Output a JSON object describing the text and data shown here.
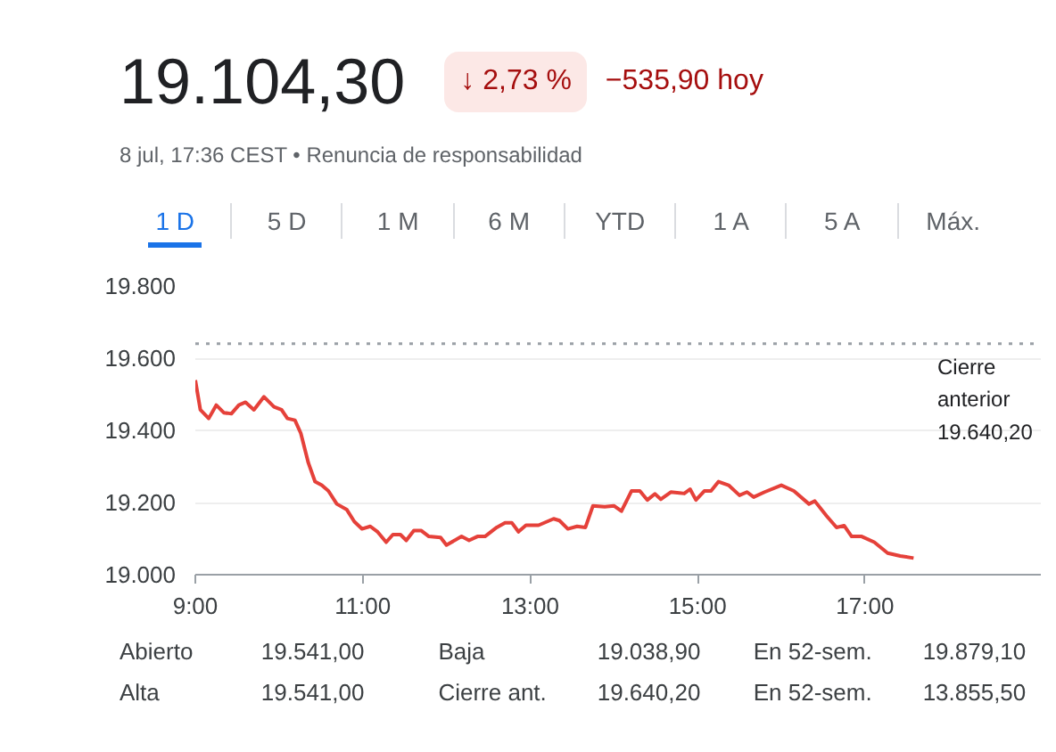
{
  "chart_data": {
    "type": "line",
    "title": "19.104,30",
    "annotations": [
      "↓ 2,73 %",
      "−535,90 hoy",
      "8 jul, 17:36 CEST • Renuncia de responsabilidad",
      "1 D",
      "5 D",
      "1 M",
      "6 M",
      "YTD",
      "1 A",
      "5 A",
      "Máx.",
      "Abierto",
      "19.541,00",
      "Baja",
      "19.038,90",
      "En 52-sem.",
      "19.879,10",
      "Alta",
      "19.541,00",
      "Cierre ant.",
      "19.640,20",
      "En 52-sem.",
      "13.855,50"
    ],
    "x": [
      9.0,
      9.06,
      9.16,
      9.25,
      9.34,
      9.43,
      9.52,
      9.6,
      9.7,
      9.82,
      9.94,
      10.03,
      10.1,
      10.19,
      10.26,
      10.35,
      10.43,
      10.51,
      10.59,
      10.69,
      10.81,
      10.9,
      10.99,
      11.09,
      11.18,
      11.28,
      11.36,
      11.45,
      11.52,
      11.61,
      11.7,
      11.79,
      11.93,
      12.0,
      12.18,
      12.27,
      12.37,
      12.46,
      12.6,
      12.7,
      12.78,
      12.86,
      12.95,
      13.1,
      13.28,
      13.35,
      13.45,
      13.56,
      13.66,
      13.75,
      13.89,
      14.0,
      14.09,
      14.21,
      14.31,
      14.4,
      14.49,
      14.56,
      14.68,
      14.84,
      14.91,
      14.98,
      15.08,
      15.16,
      15.25,
      15.37,
      15.5,
      15.59,
      15.67,
      15.8,
      16.0,
      16.15,
      16.33,
      16.4,
      16.54,
      16.66,
      16.75,
      16.84,
      16.96,
      17.11,
      17.27,
      17.42,
      17.58
    ],
    "series": [
      {
        "color": "#e5413a",
        "values": [
          19539,
          19457,
          19433,
          19470,
          19449,
          19446,
          19470,
          19478,
          19457,
          19493,
          19465,
          19457,
          19433,
          19428,
          19392,
          19310,
          19258,
          19248,
          19232,
          19196,
          19180,
          19147,
          19127,
          19134,
          19118,
          19090,
          19111,
          19111,
          19095,
          19122,
          19122,
          19106,
          19103,
          19082,
          19106,
          19095,
          19106,
          19106,
          19131,
          19144,
          19144,
          19119,
          19137,
          19137,
          19155,
          19150,
          19127,
          19134,
          19131,
          19191,
          19188,
          19191,
          19176,
          19232,
          19232,
          19207,
          19224,
          19209,
          19229,
          19225,
          19237,
          19207,
          19232,
          19232,
          19258,
          19248,
          19220,
          19229,
          19215,
          19229,
          19248,
          19232,
          19196,
          19204,
          19163,
          19131,
          19136,
          19106,
          19106,
          19090,
          19060,
          19052,
          19046
        ]
      }
    ],
    "xlim": [
      9,
      19.1
    ],
    "ylim": [
      19000,
      19800
    ],
    "xticks": [
      {
        "value": 9,
        "label": "9:00"
      },
      {
        "value": 11,
        "label": "11:00"
      },
      {
        "value": 13,
        "label": "13:00"
      },
      {
        "value": 15,
        "label": "15:00"
      },
      {
        "value": 17,
        "label": "17:00"
      }
    ],
    "yticks": [
      {
        "value": 19000,
        "label": "19.000"
      },
      {
        "value": 19200,
        "label": "19.200"
      },
      {
        "value": 19400,
        "label": "19.400"
      },
      {
        "value": 19600,
        "label": "19.600"
      },
      {
        "value": 19800,
        "label": "19.800"
      }
    ],
    "ref_lines": [
      {
        "axis": "y",
        "value": 19640.2,
        "label": "Cierre anterior 19.640,20",
        "color": "#9aa0a6",
        "line_style": "dotted"
      }
    ],
    "grid": "y",
    "marker": "none",
    "line_style": "solid"
  }
}
